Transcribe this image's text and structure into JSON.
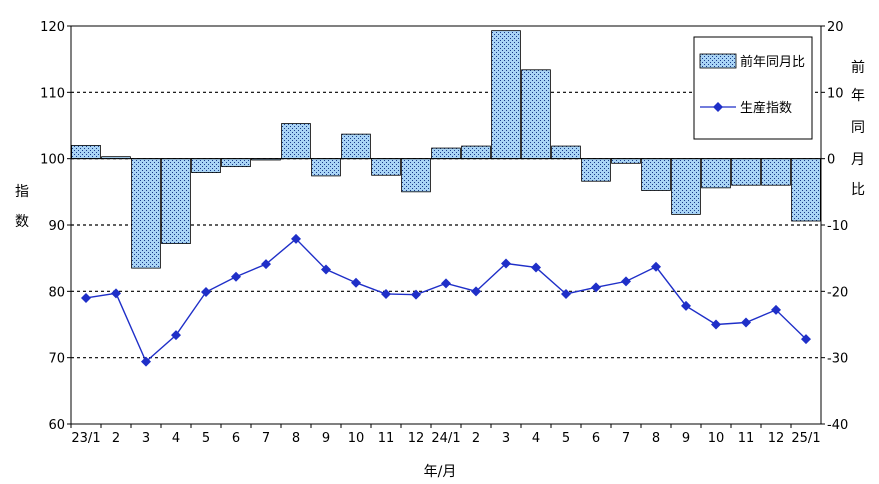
{
  "chart_data": {
    "type": "bar+line",
    "categories": [
      "23/1",
      "2",
      "3",
      "4",
      "5",
      "6",
      "7",
      "8",
      "9",
      "10",
      "11",
      "12",
      "24/1",
      "2",
      "3",
      "4",
      "5",
      "6",
      "7",
      "8",
      "9",
      "10",
      "11",
      "12",
      "25/1"
    ],
    "xlabel": "年/月",
    "ylabel_left": "指数",
    "ylabel_right": "前年同月比",
    "ylim_left": [
      60,
      120
    ],
    "yticks_left": [
      60,
      70,
      80,
      90,
      100,
      110,
      120
    ],
    "ylim_right": [
      -40,
      20
    ],
    "yticks_right": [
      -40,
      -30,
      -20,
      -10,
      0,
      10,
      20
    ],
    "grid": "dashed horizontal",
    "legend_position": "top-right",
    "series": [
      {
        "name": "前年同月比",
        "type": "bar",
        "axis": "right",
        "color": "#99ccff",
        "values": [
          2.0,
          0.3,
          -16.5,
          -12.8,
          -2.1,
          -1.2,
          -0.2,
          5.3,
          -2.6,
          3.7,
          -2.5,
          -5.0,
          1.6,
          1.9,
          19.3,
          13.4,
          1.9,
          -3.4,
          -0.7,
          -4.8,
          -8.4,
          -4.4,
          -4.0,
          -4.0,
          -9.4
        ]
      },
      {
        "name": "生産指数",
        "type": "line",
        "axis": "left",
        "color": "#1f2fc8",
        "values": [
          79.0,
          79.7,
          69.4,
          73.4,
          79.9,
          82.2,
          84.1,
          87.9,
          83.3,
          81.3,
          79.6,
          79.5,
          81.2,
          80.0,
          84.2,
          83.6,
          79.6,
          80.6,
          81.5,
          83.7,
          77.8,
          75.0,
          75.3,
          77.2,
          72.8
        ]
      }
    ]
  }
}
